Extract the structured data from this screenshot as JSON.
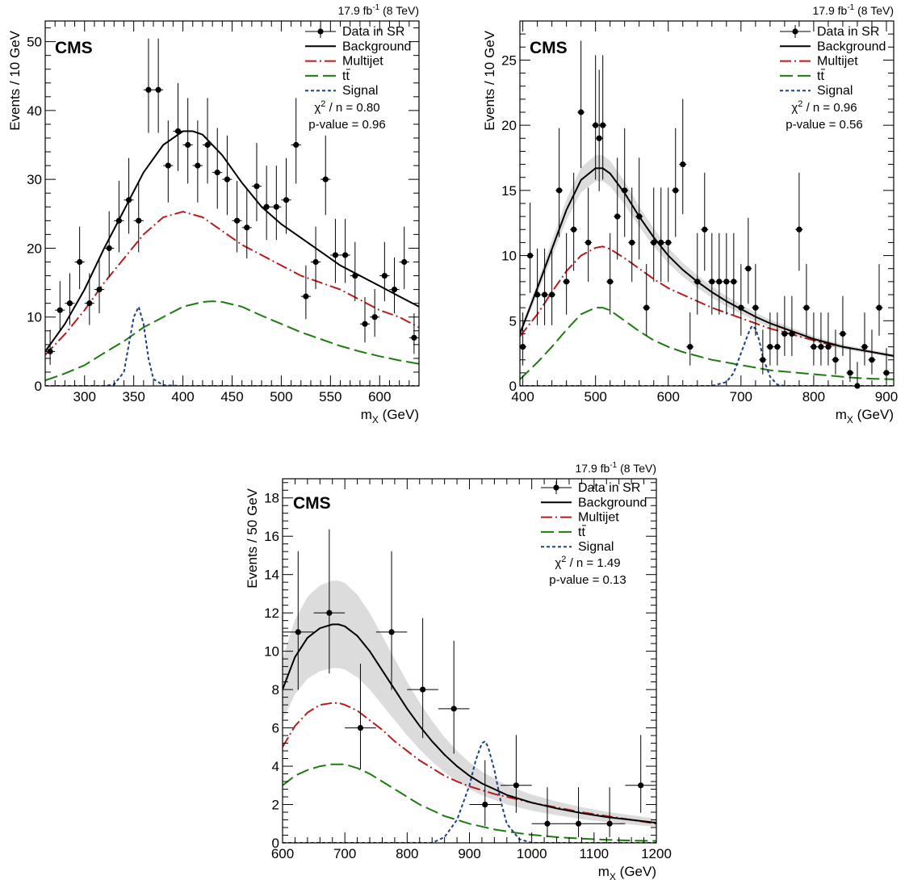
{
  "chart_data": [
    {
      "type": "scatter",
      "lumi": "17.9 fb",
      "lumi_sup": "-1",
      "energy": " (8 TeV)",
      "experiment": "CMS",
      "xlabel_main": "m",
      "xlabel_sub": "X",
      "xlabel_unit": " (GeV)",
      "ylabel": "Events / 10 GeV",
      "xlim": [
        260,
        640
      ],
      "ylim": [
        0,
        53
      ],
      "xticks": [
        300,
        350,
        400,
        450,
        500,
        550,
        600
      ],
      "xtick_labels": [
        "300",
        "350",
        "400",
        "450",
        "500",
        "550",
        "600"
      ],
      "yticks": [
        0,
        10,
        20,
        30,
        40,
        50
      ],
      "ytick_labels": [
        "0",
        "10",
        "20",
        "30",
        "40",
        "50"
      ],
      "legend": {
        "data": "Data in SR",
        "background": "Background",
        "multijet": "Multijet",
        "ttbar": "tt",
        "signal": "Signal"
      },
      "chi2_label": "χ",
      "chi2_sup": "2",
      "chi2_value": " / n = 0.80",
      "pvalue_text": "p-value = 0.96",
      "bin_half_width": 5,
      "has_band": false,
      "data": {
        "x": [
          265,
          275,
          285,
          295,
          305,
          315,
          325,
          335,
          345,
          355,
          365,
          375,
          385,
          395,
          405,
          415,
          425,
          435,
          445,
          455,
          465,
          475,
          485,
          495,
          505,
          515,
          525,
          535,
          545,
          555,
          565,
          575,
          585,
          595,
          605,
          615,
          625,
          635
        ],
        "y": [
          5,
          11,
          12,
          18,
          12,
          14,
          20,
          24,
          27,
          24,
          43,
          43,
          32,
          37,
          35,
          32,
          35,
          31,
          30,
          24,
          23,
          29,
          26,
          26,
          27,
          35,
          13,
          18,
          30,
          19,
          19,
          16,
          9,
          10,
          16,
          14,
          18,
          7
        ]
      },
      "background": {
        "x": [
          260,
          280,
          300,
          320,
          340,
          360,
          380,
          400,
          410,
          420,
          440,
          460,
          480,
          500,
          520,
          540,
          560,
          580,
          600,
          620,
          640
        ],
        "y": [
          5,
          9,
          14,
          20,
          25.5,
          31,
          35,
          37,
          37,
          36.5,
          33.5,
          29.5,
          26,
          23.5,
          21.5,
          19.5,
          17.5,
          16,
          14.5,
          13,
          11.5
        ]
      },
      "multijet": {
        "x": [
          260,
          280,
          300,
          320,
          340,
          360,
          380,
          400,
          420,
          440,
          460,
          480,
          500,
          520,
          540,
          560,
          580,
          600,
          620,
          640
        ],
        "y": [
          4.5,
          7.5,
          11,
          15,
          18.5,
          22,
          24.5,
          25.3,
          24.5,
          22.5,
          20.5,
          19,
          17.5,
          16,
          15,
          14,
          12.5,
          11,
          10,
          8.5
        ]
      },
      "ttbar": {
        "x": [
          260,
          280,
          300,
          320,
          340,
          360,
          380,
          400,
          420,
          430,
          440,
          460,
          480,
          500,
          520,
          540,
          560,
          580,
          600,
          620,
          640
        ],
        "y": [
          0.8,
          1.8,
          3,
          4.8,
          6.5,
          8.5,
          10,
          11.5,
          12.2,
          12.3,
          12.2,
          11.5,
          10.2,
          9,
          7.8,
          6.8,
          5.8,
          5,
          4.3,
          3.7,
          3.2
        ]
      },
      "signal": {
        "x": [
          260,
          320,
          330,
          340,
          345,
          350,
          355,
          360,
          365,
          370,
          380,
          400,
          640
        ],
        "y": [
          0,
          0,
          0.2,
          2,
          6,
          10,
          11.5,
          9,
          4,
          1,
          0.1,
          0,
          0
        ]
      }
    },
    {
      "type": "scatter",
      "lumi": "17.9 fb",
      "lumi_sup": "-1",
      "energy": " (8 TeV)",
      "experiment": "CMS",
      "xlabel_main": "m",
      "xlabel_sub": "X",
      "xlabel_unit": " (GeV)",
      "ylabel": "Events / 10 GeV",
      "xlim": [
        396,
        910
      ],
      "ylim": [
        0,
        28
      ],
      "xticks": [
        400,
        500,
        600,
        700,
        800,
        900
      ],
      "xtick_labels": [
        "400",
        "500",
        "600",
        "700",
        "800",
        "900"
      ],
      "yticks": [
        0,
        5,
        10,
        15,
        20,
        25
      ],
      "ytick_labels": [
        "0",
        "5",
        "10",
        "15",
        "20",
        "25"
      ],
      "legend": {
        "data": "Data in SR",
        "background": "Background",
        "multijet": "Multijet",
        "ttbar": "tt",
        "signal": "Signal"
      },
      "chi2_label": "χ",
      "chi2_sup": "2",
      "chi2_value": " / n = 0.96",
      "pvalue_text": "p-value = 0.56",
      "bin_half_width": 5,
      "has_band": true,
      "data": {
        "x": [
          400,
          410,
          420,
          430,
          440,
          450,
          460,
          470,
          480,
          490,
          500,
          505,
          510,
          520,
          530,
          540,
          550,
          560,
          570,
          580,
          590,
          600,
          610,
          620,
          630,
          640,
          650,
          660,
          670,
          680,
          690,
          700,
          710,
          720,
          730,
          740,
          750,
          760,
          770,
          780,
          790,
          800,
          810,
          820,
          830,
          840,
          850,
          860,
          870,
          880,
          890,
          900
        ],
        "y": [
          3,
          10,
          7,
          7,
          7,
          15,
          8,
          12,
          21,
          11,
          20,
          19,
          20,
          8,
          13,
          15,
          11,
          13,
          6,
          11,
          11,
          11,
          15,
          17,
          3,
          8,
          12,
          8,
          8,
          8,
          8,
          6,
          9,
          6,
          2,
          3,
          3,
          4,
          4,
          12,
          6,
          3,
          3,
          3,
          2,
          4,
          1,
          0,
          3,
          2,
          6,
          1
        ]
      },
      "background": {
        "x": [
          396,
          420,
          440,
          460,
          480,
          500,
          510,
          520,
          540,
          560,
          580,
          600,
          620,
          640,
          660,
          680,
          700,
          720,
          740,
          760,
          780,
          800,
          820,
          840,
          860,
          880,
          910
        ],
        "y": [
          4,
          7.5,
          10.5,
          13.5,
          15.8,
          16.7,
          16.7,
          16.3,
          14.8,
          13,
          11.4,
          10,
          8.9,
          8,
          7.2,
          6.5,
          5.9,
          5.3,
          4.8,
          4.4,
          4,
          3.6,
          3.3,
          3,
          2.8,
          2.6,
          2.3
        ]
      },
      "multijet": {
        "x": [
          396,
          420,
          440,
          460,
          480,
          500,
          510,
          520,
          540,
          560,
          580,
          600,
          620,
          640,
          660,
          680,
          700,
          720,
          740,
          760,
          780,
          800,
          820,
          840,
          860,
          880,
          910
        ],
        "y": [
          3.8,
          5.5,
          7.2,
          8.8,
          10,
          10.6,
          10.7,
          10.5,
          9.8,
          9,
          8.2,
          7.5,
          7,
          6.5,
          6,
          5.6,
          5.2,
          4.8,
          4.4,
          4.1,
          3.8,
          3.5,
          3.2,
          3,
          2.8,
          2.6,
          2.3
        ]
      },
      "ttbar": {
        "x": [
          396,
          420,
          440,
          460,
          480,
          500,
          510,
          520,
          540,
          560,
          580,
          600,
          620,
          640,
          660,
          680,
          700,
          720,
          740,
          760,
          780,
          800,
          820,
          840,
          860,
          880,
          910
        ],
        "y": [
          0.5,
          1.8,
          3,
          4.3,
          5.5,
          6,
          6,
          5.8,
          5,
          4.2,
          3.5,
          3,
          2.6,
          2.3,
          2,
          1.8,
          1.6,
          1.4,
          1.2,
          1.1,
          1,
          0.9,
          0.8,
          0.7,
          0.6,
          0.55,
          0.5
        ]
      },
      "signal": {
        "x": [
          396,
          660,
          680,
          690,
          700,
          710,
          715,
          720,
          725,
          730,
          740,
          750,
          760,
          910
        ],
        "y": [
          0,
          0,
          0.3,
          1,
          2.5,
          4,
          4.6,
          4.4,
          3.5,
          2.2,
          0.7,
          0.1,
          0,
          0
        ]
      }
    },
    {
      "type": "scatter",
      "lumi": "17.9 fb",
      "lumi_sup": "-1",
      "energy": " (8 TeV)",
      "experiment": "CMS",
      "xlabel_main": "m",
      "xlabel_sub": "X",
      "xlabel_unit": " (GeV)",
      "ylabel": "Events / 50 GeV",
      "xlim": [
        600,
        1200
      ],
      "ylim": [
        0,
        19
      ],
      "xticks": [
        600,
        700,
        800,
        900,
        1000,
        1100,
        1200
      ],
      "xtick_labels": [
        "600",
        "700",
        "800",
        "900",
        "1000",
        "1100",
        "1200"
      ],
      "yticks": [
        0,
        2,
        4,
        6,
        8,
        10,
        12,
        14,
        16,
        18
      ],
      "ytick_labels": [
        "0",
        "2",
        "4",
        "6",
        "8",
        "10",
        "12",
        "14",
        "16",
        "18"
      ],
      "legend": {
        "data": "Data in SR",
        "background": "Background",
        "multijet": "Multijet",
        "ttbar": "tt",
        "signal": "Signal"
      },
      "chi2_label": "χ",
      "chi2_sup": "2",
      "chi2_value": " / n = 1.49",
      "pvalue_text": "p-value = 0.13",
      "bin_half_width": 25,
      "has_band": true,
      "data": {
        "x": [
          625,
          675,
          725,
          775,
          825,
          875,
          925,
          975,
          1025,
          1075,
          1125,
          1175
        ],
        "y": [
          11,
          12,
          6,
          11,
          8,
          7,
          2,
          3,
          1,
          1,
          1,
          3
        ]
      },
      "background": {
        "x": [
          600,
          620,
          640,
          660,
          680,
          690,
          700,
          720,
          740,
          760,
          780,
          800,
          820,
          840,
          860,
          880,
          900,
          920,
          940,
          960,
          980,
          1000,
          1040,
          1080,
          1120,
          1160,
          1200
        ],
        "y": [
          8,
          9.7,
          10.7,
          11.2,
          11.4,
          11.4,
          11.3,
          10.8,
          10,
          9,
          8,
          7,
          6.1,
          5.3,
          4.6,
          4,
          3.5,
          3.1,
          2.8,
          2.5,
          2.3,
          2.1,
          1.8,
          1.55,
          1.35,
          1.2,
          1.05
        ]
      },
      "multijet": {
        "x": [
          600,
          620,
          640,
          660,
          680,
          690,
          700,
          720,
          740,
          760,
          780,
          800,
          820,
          840,
          860,
          880,
          900,
          920,
          940,
          960,
          980,
          1000,
          1040,
          1080,
          1120,
          1160,
          1200
        ],
        "y": [
          5,
          6.1,
          6.8,
          7.2,
          7.3,
          7.3,
          7.2,
          6.9,
          6.4,
          5.9,
          5.3,
          4.8,
          4.3,
          3.9,
          3.5,
          3.2,
          2.95,
          2.75,
          2.55,
          2.4,
          2.25,
          2.1,
          1.85,
          1.6,
          1.4,
          1.2,
          1
        ]
      },
      "ttbar": {
        "x": [
          600,
          620,
          640,
          660,
          680,
          690,
          700,
          720,
          740,
          760,
          780,
          800,
          820,
          840,
          860,
          880,
          900,
          920,
          940,
          960,
          980,
          1000,
          1040,
          1080,
          1120,
          1160,
          1200
        ],
        "y": [
          3,
          3.5,
          3.8,
          4,
          4.1,
          4.1,
          4.1,
          3.9,
          3.6,
          3.2,
          2.8,
          2.4,
          2,
          1.7,
          1.4,
          1.2,
          1,
          0.85,
          0.7,
          0.6,
          0.5,
          0.42,
          0.3,
          0.22,
          0.16,
          0.12,
          0.1
        ]
      },
      "signal": {
        "x": [
          600,
          840,
          860,
          880,
          900,
          910,
          920,
          925,
          930,
          940,
          950,
          960,
          980,
          1000,
          1200
        ],
        "y": [
          0,
          0,
          0.3,
          1.2,
          3,
          4.3,
          5.2,
          5.3,
          5,
          3.8,
          2.2,
          1,
          0.2,
          0,
          0
        ]
      }
    }
  ]
}
